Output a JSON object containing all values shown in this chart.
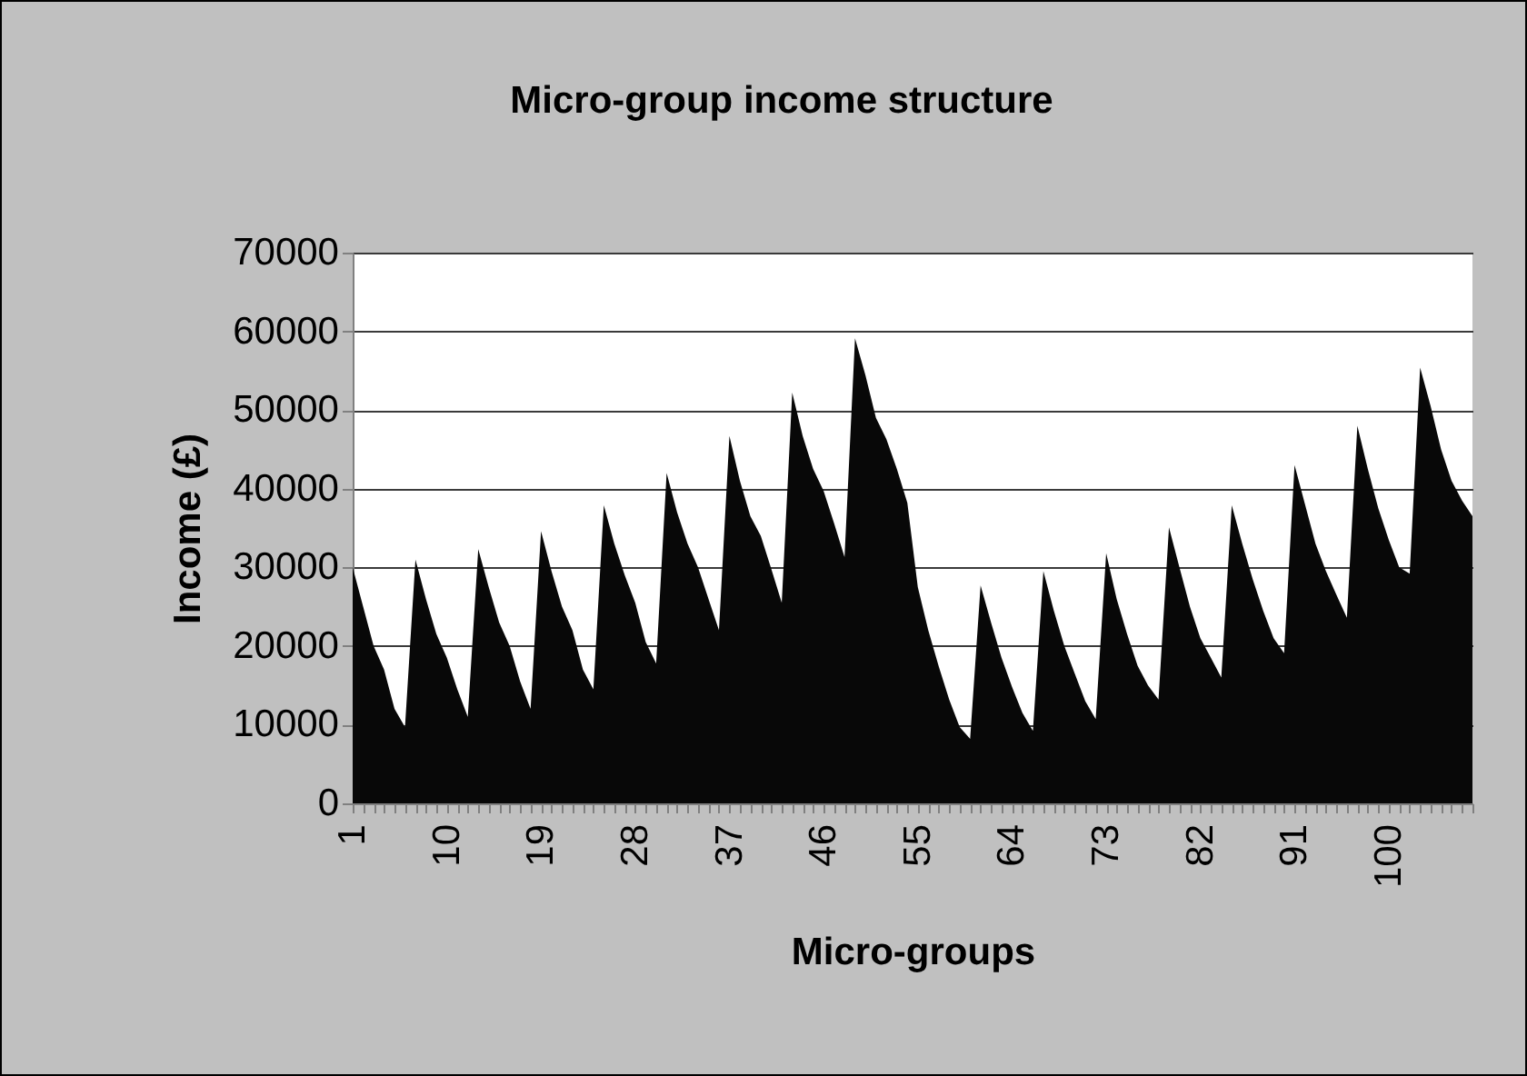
{
  "chart_data": {
    "type": "area",
    "title": "Micro-group income structure",
    "xlabel": "Micro-groups",
    "ylabel": "Income (£)",
    "categories": [
      "1",
      null,
      null,
      null,
      null,
      null,
      null,
      null,
      null,
      "10",
      null,
      null,
      null,
      null,
      null,
      null,
      null,
      null,
      "19",
      null,
      null,
      null,
      null,
      null,
      null,
      null,
      null,
      "28",
      null,
      null,
      null,
      null,
      null,
      null,
      null,
      null,
      "37",
      null,
      null,
      null,
      null,
      null,
      null,
      null,
      null,
      "46",
      null,
      null,
      null,
      null,
      null,
      null,
      null,
      null,
      "55",
      null,
      null,
      null,
      null,
      null,
      null,
      null,
      null,
      "64",
      null,
      null,
      null,
      null,
      null,
      null,
      null,
      null,
      "73",
      null,
      null,
      null,
      null,
      null,
      null,
      null,
      null,
      "82",
      null,
      null,
      null,
      null,
      null,
      null,
      null,
      null,
      "91",
      null,
      null,
      null,
      null,
      null,
      null,
      null,
      null,
      "100",
      null,
      null,
      null,
      null,
      null,
      null,
      null,
      null
    ],
    "series": [
      {
        "color": "#080808",
        "values": [
          30000,
          25000,
          20000,
          17000,
          12000,
          9700,
          31000,
          26000,
          21500,
          18500,
          14500,
          11000,
          32300,
          27500,
          23000,
          20000,
          15500,
          12000,
          34600,
          29500,
          25000,
          22000,
          17000,
          14500,
          37900,
          33000,
          29000,
          25500,
          20500,
          17800,
          42000,
          37000,
          33000,
          30000,
          26000,
          22000,
          46700,
          41000,
          36500,
          34000,
          29800,
          25500,
          52200,
          46700,
          42500,
          39700,
          35600,
          31300,
          59100,
          54400,
          49000,
          46300,
          42500,
          38200,
          27500,
          22000,
          17400,
          13200,
          9700,
          8200,
          27700,
          23000,
          18500,
          14800,
          11500,
          9200,
          29500,
          24500,
          20000,
          16500,
          13000,
          10700,
          31800,
          26000,
          21500,
          17500,
          15000,
          13200,
          35100,
          30000,
          25000,
          21000,
          18500,
          16000,
          37900,
          33000,
          28500,
          24500,
          21000,
          19100,
          43000,
          38000,
          33000,
          29500,
          26500,
          23600,
          48000,
          42500,
          37500,
          33500,
          30000,
          29200,
          55400,
          50500,
          45000,
          41000,
          38500,
          36500
        ]
      }
    ],
    "ylim": [
      0,
      70000
    ],
    "yticks": [
      0,
      10000,
      20000,
      30000,
      40000,
      50000,
      60000,
      70000
    ],
    "grid": "y",
    "legend": false
  }
}
